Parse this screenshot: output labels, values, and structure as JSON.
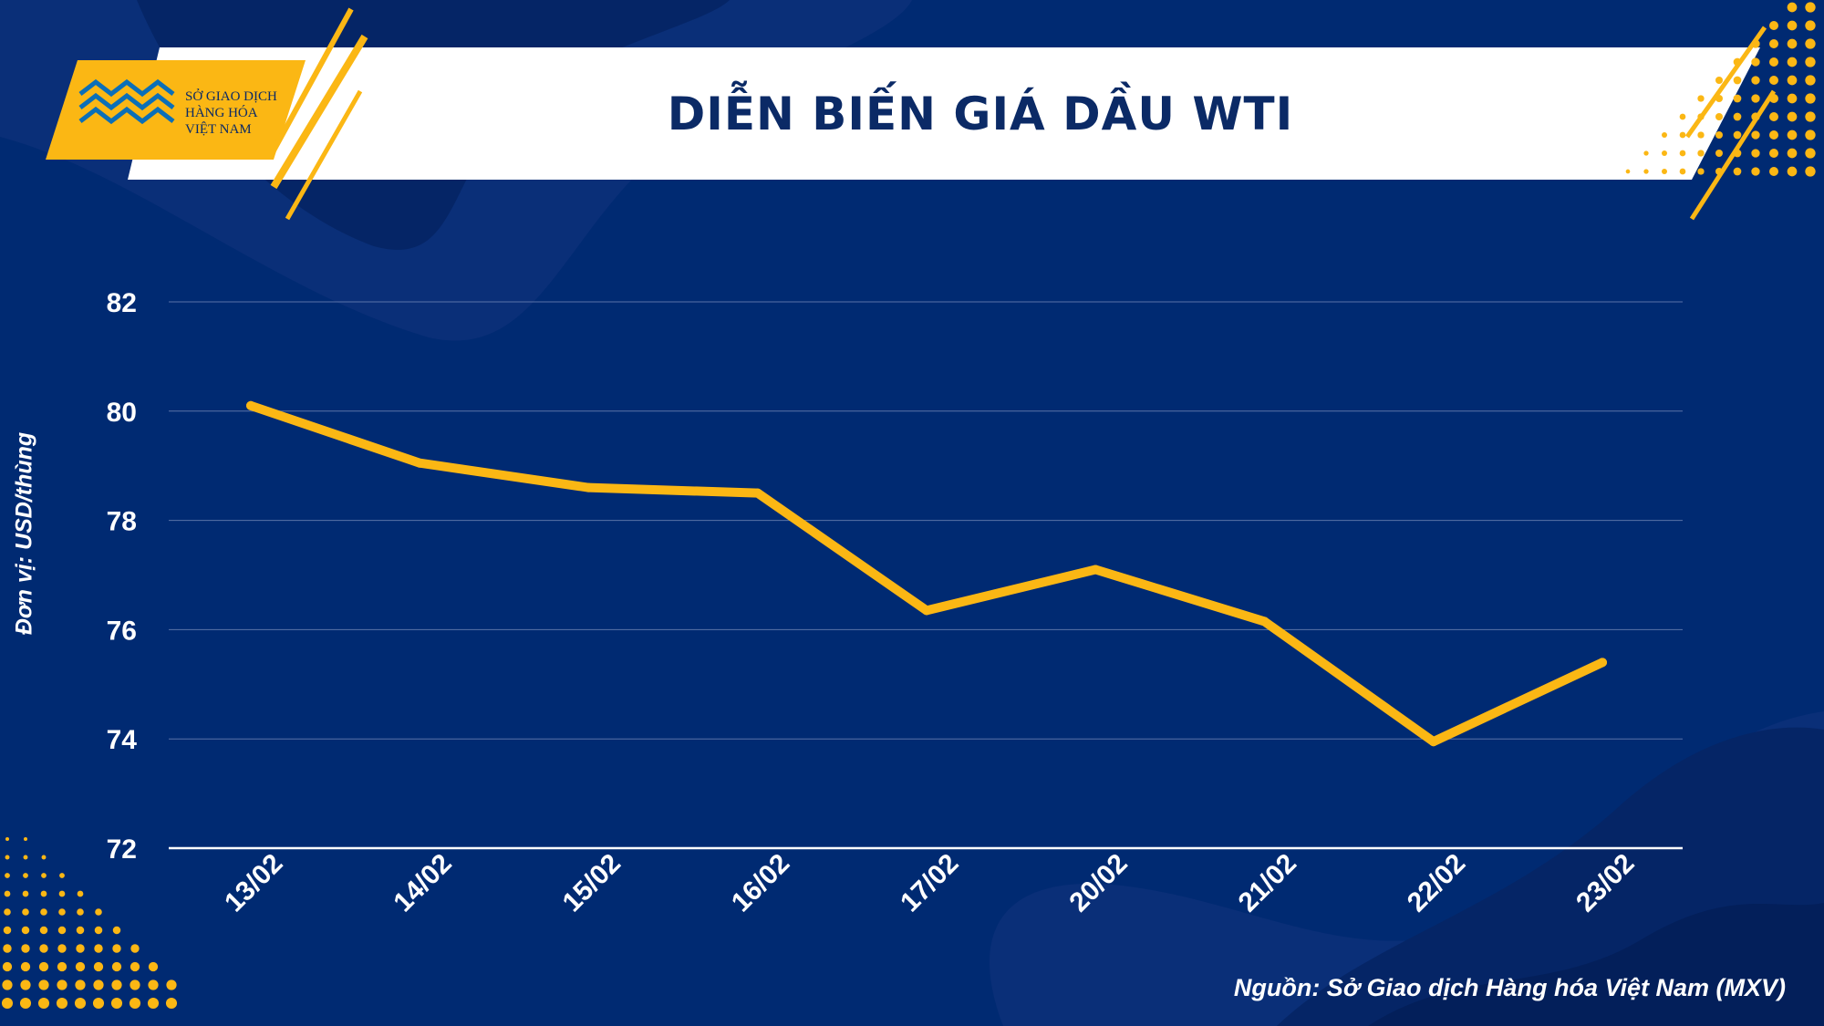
{
  "logo": {
    "line1": "SỞ GIAO DỊCH",
    "line2": "HÀNG HÓA",
    "line3": "VIỆT NAM"
  },
  "header": {
    "title": "DIỄN BIẾN GIÁ DẦU WTI"
  },
  "source_note": "Nguồn: Sở Giao dịch Hàng hóa Việt Nam (MXV)",
  "colors": {
    "background": "#002a72",
    "accent": "#fbb714",
    "line": "#fbb714",
    "title": "#0b2a66",
    "text": "#ffffff"
  },
  "chart_data": {
    "type": "line",
    "title": "DIỄN BIẾN GIÁ DẦU WTI",
    "xlabel": "",
    "ylabel": "Đơn vị: USD/thùng",
    "categories": [
      "13/02",
      "14/02",
      "15/02",
      "16/02",
      "17/02",
      "20/02",
      "21/02",
      "22/02",
      "23/02"
    ],
    "series": [
      {
        "values": [
          80.1,
          79.05,
          78.6,
          78.5,
          76.35,
          77.1,
          76.15,
          73.95,
          75.4
        ]
      }
    ],
    "ylim": [
      72,
      82
    ],
    "yticks": [
      72,
      74,
      76,
      78,
      80,
      82
    ],
    "grid": true,
    "legend": "none"
  }
}
